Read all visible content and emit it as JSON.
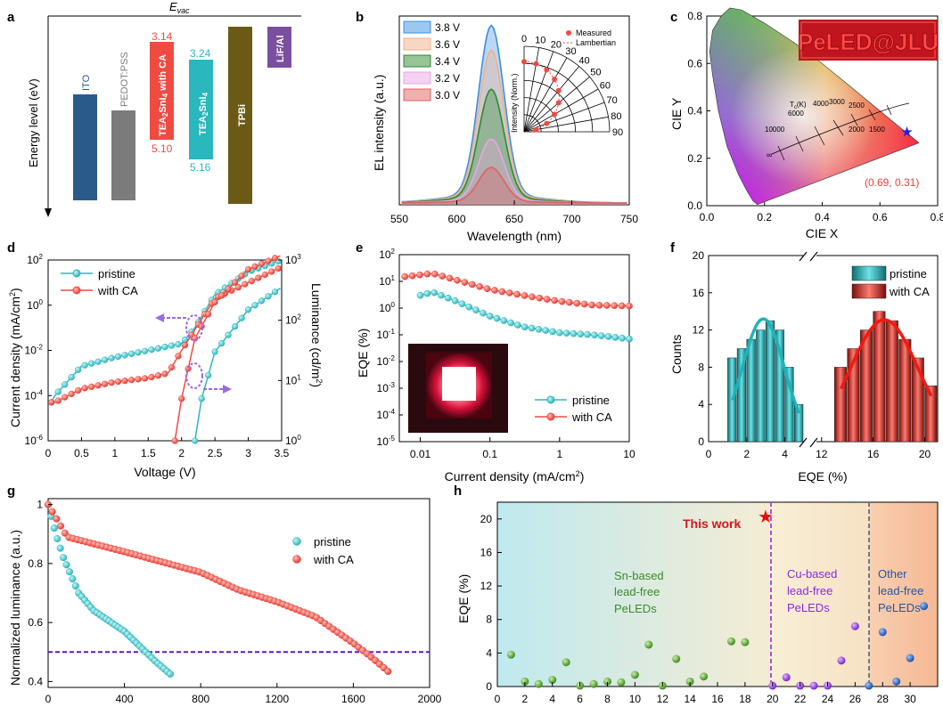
{
  "colors": {
    "teal": "#2ab7bd",
    "teal_dark": "#0f8f95",
    "red": "#ef4b43",
    "red_dark": "#c8201a",
    "purple": "#7a2ad6",
    "purple_light": "#b46be0",
    "ito": "#2a5a8a",
    "pedot": "#7b7b7b",
    "tpbi": "#6b5a16",
    "lif": "#7a4fa0",
    "green_ball": "#4b9a2a",
    "blue_ball": "#1f5fb5"
  },
  "panels": {
    "a": "a",
    "b": "b",
    "c": "c",
    "d": "d",
    "e": "e",
    "f": "f",
    "g": "g",
    "h": "h"
  },
  "chart_data": [
    {
      "panel": "a",
      "type": "diagram",
      "title": "E",
      "title_sub": "vac",
      "ylabel": "Energy level (eV)",
      "layers": [
        {
          "name": "ITO",
          "top": "",
          "bottom": ""
        },
        {
          "name": "PEDOT:PSS",
          "top": "",
          "bottom": ""
        },
        {
          "name": "TEA2SnI4 with CA",
          "top": "3.14",
          "bottom": "5.10"
        },
        {
          "name": "TEA2SnI4",
          "top": "3.24",
          "bottom": "5.16"
        },
        {
          "name": "TPBi",
          "top": "",
          "bottom": ""
        },
        {
          "name": "LiF/Al",
          "top": "",
          "bottom": ""
        }
      ]
    },
    {
      "panel": "b",
      "type": "line",
      "xlabel": "Wavelength (nm)",
      "ylabel": "EL intensity (a.u.)",
      "xlim": [
        550,
        750
      ],
      "xticks": [
        "550",
        "600",
        "650",
        "700",
        "750"
      ],
      "peak": 630,
      "series": [
        {
          "name": "3.8 V",
          "peak_rel": 1.0,
          "color": "#3a8fe0"
        },
        {
          "name": "3.6 V",
          "peak_rel": 0.86,
          "color": "#f0b08a"
        },
        {
          "name": "3.4 V",
          "peak_rel": 0.64,
          "color": "#2e8a2e"
        },
        {
          "name": "3.2 V",
          "peak_rel": 0.36,
          "color": "#e9a6e6"
        },
        {
          "name": "3.0 V",
          "peak_rel": 0.2,
          "color": "#e06060"
        }
      ],
      "inset": {
        "type": "polar",
        "ylabel": "Intensity (Norm.)",
        "angles": [
          "0",
          "10",
          "20",
          "30",
          "40",
          "50",
          "60",
          "70",
          "80",
          "90"
        ],
        "legend": [
          "Measured",
          "Lambertian"
        ]
      }
    },
    {
      "panel": "c",
      "type": "scatter",
      "xlabel": "CIE X",
      "ylabel": "CIE Y",
      "xlim": [
        0.0,
        0.8
      ],
      "ylim": [
        0.0,
        0.8
      ],
      "xticks": [
        "0.0",
        "0.2",
        "0.4",
        "0.6",
        "0.8"
      ],
      "yticks": [
        "0.0",
        "0.2",
        "0.4",
        "0.6",
        "0.8"
      ],
      "point": [
        0.69,
        0.31
      ],
      "point_label": "(0.69, 0.31)",
      "logo": "PeLED@JLU",
      "planckian_labels": [
        "10000",
        "6000",
        "4000",
        "3000",
        "2500",
        "2000",
        "1500"
      ],
      "tc_label": "T",
      "tc_sub": "c",
      "tc_suffix": "(K)",
      "infinity": "∞"
    },
    {
      "panel": "d",
      "type": "line",
      "xlabel": "Voltage (V)",
      "ylabel": "Current density (mA/cm",
      "ylabel_sup": "2",
      "ylabel_tail": ")",
      "y2label": "Luminance (cd/m",
      "y2label_sup": "2",
      "y2label_tail": ")",
      "xlim": [
        0,
        3.5
      ],
      "xticks": [
        "0",
        "0.5",
        "1",
        "1.5",
        "2",
        "2.5",
        "3",
        "3.5"
      ],
      "ylim": [
        1e-06,
        100
      ],
      "y2lim": [
        1,
        1000
      ],
      "series": [
        {
          "name": "pristine",
          "J": [
            [
              0.05,
              5e-05
            ],
            [
              0.1,
              0.0001
            ],
            [
              0.5,
              0.002
            ],
            [
              1.0,
              0.005
            ],
            [
              1.5,
              0.01
            ],
            [
              2.0,
              0.02
            ],
            [
              2.2,
              0.1
            ],
            [
              2.5,
              3
            ],
            [
              3.0,
              30
            ],
            [
              3.5,
              100
            ]
          ],
          "L": [
            [
              2.2,
              1
            ],
            [
              2.3,
              5
            ],
            [
              2.5,
              30
            ],
            [
              3.0,
              150
            ],
            [
              3.5,
              350
            ]
          ]
        },
        {
          "name": "with CA",
          "J": [
            [
              0.05,
              5e-05
            ],
            [
              0.1,
              5e-05
            ],
            [
              0.5,
              0.0002
            ],
            [
              1.0,
              0.0004
            ],
            [
              1.5,
              0.0006
            ],
            [
              1.8,
              0.001
            ],
            [
              2.0,
              0.01
            ],
            [
              2.5,
              2
            ],
            [
              3.0,
              10
            ],
            [
              3.5,
              50
            ]
          ],
          "L": [
            [
              1.9,
              1
            ],
            [
              2.0,
              5
            ],
            [
              2.2,
              50
            ],
            [
              2.5,
              200
            ],
            [
              3.0,
              700
            ],
            [
              3.5,
              1200
            ]
          ]
        }
      ]
    },
    {
      "panel": "e",
      "type": "line",
      "xlabel": "Current density (mA/cm",
      "xlabel_sup": "2",
      "xlabel_tail": ")",
      "ylabel": "EQE (%)",
      "xlim": [
        0.005,
        10
      ],
      "ylim": [
        1e-05,
        100
      ],
      "xticks": [
        "0.01",
        "0.1",
        "1",
        "10"
      ],
      "series": [
        {
          "name": "pristine",
          "points": [
            [
              0.01,
              3
            ],
            [
              0.015,
              4
            ],
            [
              0.03,
              2
            ],
            [
              0.1,
              0.5
            ],
            [
              0.3,
              0.2
            ],
            [
              1,
              0.12
            ],
            [
              3,
              0.1
            ],
            [
              10,
              0.07
            ]
          ]
        },
        {
          "name": "with CA",
          "points": [
            [
              0.006,
              15
            ],
            [
              0.015,
              20
            ],
            [
              0.03,
              12
            ],
            [
              0.1,
              5
            ],
            [
              0.3,
              3
            ],
            [
              1,
              1.8
            ],
            [
              3,
              1.3
            ],
            [
              10,
              1.2
            ]
          ]
        }
      ]
    },
    {
      "panel": "f",
      "type": "bar",
      "xlabel": "EQE (%)",
      "ylabel": "Counts",
      "ylim": [
        0,
        20
      ],
      "yticks": [
        "0",
        "4",
        "8",
        "12",
        "16",
        "20"
      ],
      "xticks": [
        "0",
        "2",
        "4",
        "12",
        "16",
        "20"
      ],
      "series": [
        {
          "name": "pristine",
          "bins": [
            1.0,
            1.5,
            2.0,
            2.5,
            3.0,
            3.5,
            4.0,
            4.5
          ],
          "values": [
            9,
            10,
            11,
            12,
            13,
            12,
            8,
            4
          ]
        },
        {
          "name": "with CA",
          "bins": [
            13.0,
            14.0,
            15.0,
            16.0,
            17.0,
            18.0,
            19.0,
            20.0
          ],
          "values": [
            8,
            10,
            12,
            14,
            13,
            11,
            9,
            6
          ]
        }
      ]
    },
    {
      "panel": "g",
      "type": "scatter",
      "xlabel": "",
      "ylabel": "Normalized luminance (a.u.)",
      "xlim": [
        0,
        2000
      ],
      "ylim": [
        0.38,
        1.02
      ],
      "xticks": [
        "0",
        "400",
        "800",
        "1200",
        "1600",
        "2000"
      ],
      "yticks": [
        "0.4",
        "0.6",
        "0.8",
        "1"
      ],
      "threshold": 0.5,
      "series": [
        {
          "name": "pristine",
          "points": [
            [
              0,
              1.0
            ],
            [
              40,
              0.9
            ],
            [
              80,
              0.82
            ],
            [
              160,
              0.7
            ],
            [
              240,
              0.64
            ],
            [
              400,
              0.57
            ],
            [
              560,
              0.47
            ],
            [
              650,
              0.42
            ]
          ]
        },
        {
          "name": "with CA",
          "points": [
            [
              0,
              1.0
            ],
            [
              100,
              0.89
            ],
            [
              400,
              0.84
            ],
            [
              800,
              0.77
            ],
            [
              1000,
              0.71
            ],
            [
              1200,
              0.67
            ],
            [
              1400,
              0.62
            ],
            [
              1600,
              0.53
            ],
            [
              1700,
              0.48
            ],
            [
              1790,
              0.43
            ]
          ]
        }
      ]
    },
    {
      "panel": "h",
      "type": "scatter",
      "ylabel": "EQE (%)",
      "xlim": [
        0,
        32
      ],
      "ylim": [
        0,
        22
      ],
      "xticks": [
        "0",
        "2",
        "4",
        "6",
        "8",
        "10",
        "12",
        "14",
        "16",
        "18",
        "20",
        "22",
        "24",
        "26",
        "28",
        "30"
      ],
      "yticks": [
        "0",
        "4",
        "8",
        "12",
        "16",
        "20"
      ],
      "this_work": {
        "label": "This work",
        "x": 19.5,
        "y": 20.3
      },
      "regions": [
        {
          "label": [
            "Sn-based",
            "lead-free",
            "PeLEDs"
          ],
          "range": [
            0,
            19.6
          ]
        },
        {
          "label": [
            "Cu-based",
            "lead-free",
            "PeLEDs"
          ],
          "range": [
            19.6,
            26.6
          ]
        },
        {
          "label": [
            "Other",
            "lead-free",
            "PeLEDs"
          ],
          "range": [
            26.6,
            32
          ]
        }
      ],
      "points": [
        [
          1,
          3.8
        ],
        [
          2,
          0.6
        ],
        [
          3,
          0.3
        ],
        [
          4,
          0.8
        ],
        [
          5,
          2.9
        ],
        [
          6,
          0.1
        ],
        [
          7,
          0.3
        ],
        [
          8,
          0.6
        ],
        [
          9,
          0.5
        ],
        [
          10,
          1.4
        ],
        [
          11,
          5
        ],
        [
          12,
          0.1
        ],
        [
          13,
          3.3
        ],
        [
          14,
          0.6
        ],
        [
          15,
          1.2
        ],
        [
          17,
          5.4
        ],
        [
          18,
          5.3
        ],
        [
          20,
          0.1
        ],
        [
          21,
          1.1
        ],
        [
          22,
          0.1
        ],
        [
          23,
          0.1
        ],
        [
          24,
          0.1
        ],
        [
          25,
          3.1
        ],
        [
          26,
          7.2
        ],
        [
          27,
          0.1
        ],
        [
          28,
          6.5
        ],
        [
          29,
          0.6
        ],
        [
          30,
          3.4
        ],
        [
          31,
          9.6
        ]
      ]
    }
  ]
}
